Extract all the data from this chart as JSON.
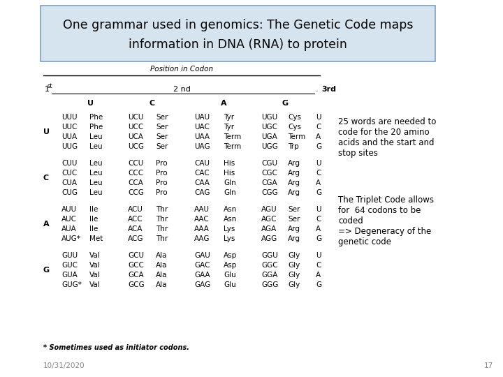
{
  "title_line1": "One grammar used in genomics: The Genetic Code maps",
  "title_line2": "information in DNA (RNA) to protein",
  "title_bg": "#d6e4f0",
  "title_border": "#7f9fbf",
  "bg_color": "#ffffff",
  "position_label": "Position in Codon",
  "first_label": "1st",
  "second_label": "2 nd",
  "third_label": "3rd",
  "second_bases": [
    "U",
    "C",
    "A",
    "G"
  ],
  "table": [
    {
      "first": "U",
      "rows": [
        [
          "UUU",
          "Phe",
          "UCU",
          "Ser",
          "UAU",
          "Tyr",
          "UGU",
          "Cys",
          "U"
        ],
        [
          "UUC",
          "Phe",
          "UCC",
          "Ser",
          "UAC",
          "Tyr",
          "UGC",
          "Cys",
          "C"
        ],
        [
          "UUA",
          "Leu",
          "UCA",
          "Ser",
          "UAA",
          "Term",
          "UGA",
          "Term",
          "A"
        ],
        [
          "UUG",
          "Leu",
          "UCG",
          "Ser",
          "UAG",
          "Term",
          "UGG",
          "Trp",
          "G"
        ]
      ]
    },
    {
      "first": "C",
      "rows": [
        [
          "CUU",
          "Leu",
          "CCU",
          "Pro",
          "CAU",
          "His",
          "CGU",
          "Arg",
          "U"
        ],
        [
          "CUC",
          "Leu",
          "CCC",
          "Pro",
          "CAC",
          "His",
          "CGC",
          "Arg",
          "C"
        ],
        [
          "CUA",
          "Leu",
          "CCA",
          "Pro",
          "CAA",
          "Gln",
          "CGA",
          "Arg",
          "A"
        ],
        [
          "CUG",
          "Leu",
          "CCG",
          "Pro",
          "CAG",
          "Gln",
          "CGG",
          "Arg",
          "G"
        ]
      ]
    },
    {
      "first": "A",
      "rows": [
        [
          "AUU",
          "Ile",
          "ACU",
          "Thr",
          "AAU",
          "Asn",
          "AGU",
          "Ser",
          "U"
        ],
        [
          "AUC",
          "Ile",
          "ACC",
          "Thr",
          "AAC",
          "Asn",
          "AGC",
          "Ser",
          "C"
        ],
        [
          "AUA",
          "Ile",
          "ACA",
          "Thr",
          "AAA",
          "Lys",
          "AGA",
          "Arg",
          "A"
        ],
        [
          "AUG*",
          "Met",
          "ACG",
          "Thr",
          "AAG",
          "Lys",
          "AGG",
          "Arg",
          "G"
        ]
      ]
    },
    {
      "first": "G",
      "rows": [
        [
          "GUU",
          "Val",
          "GCU",
          "Ala",
          "GAU",
          "Asp",
          "GGU",
          "Gly",
          "U"
        ],
        [
          "GUC",
          "Val",
          "GCC",
          "Ala",
          "GAC",
          "Asp",
          "GGC",
          "Gly",
          "C"
        ],
        [
          "GUA",
          "Val",
          "GCA",
          "Ala",
          "GAA",
          "Glu",
          "GGA",
          "Gly",
          "A"
        ],
        [
          "GUG*",
          "Val",
          "GCG",
          "Ala",
          "GAG",
          "Glu",
          "GGG",
          "Gly",
          "G"
        ]
      ]
    }
  ],
  "note": "* Sometimes used as initiator codons.",
  "date": "10/31/2020",
  "page": "17",
  "ann1": [
    "25 words are needed to",
    "code for the 20 amino",
    "acids and the start and",
    "stop sites"
  ],
  "ann2": [
    "The Triplet Code allows",
    "for  64 codons to be",
    "coded",
    "=> Degeneracy of the",
    "genetic code"
  ]
}
